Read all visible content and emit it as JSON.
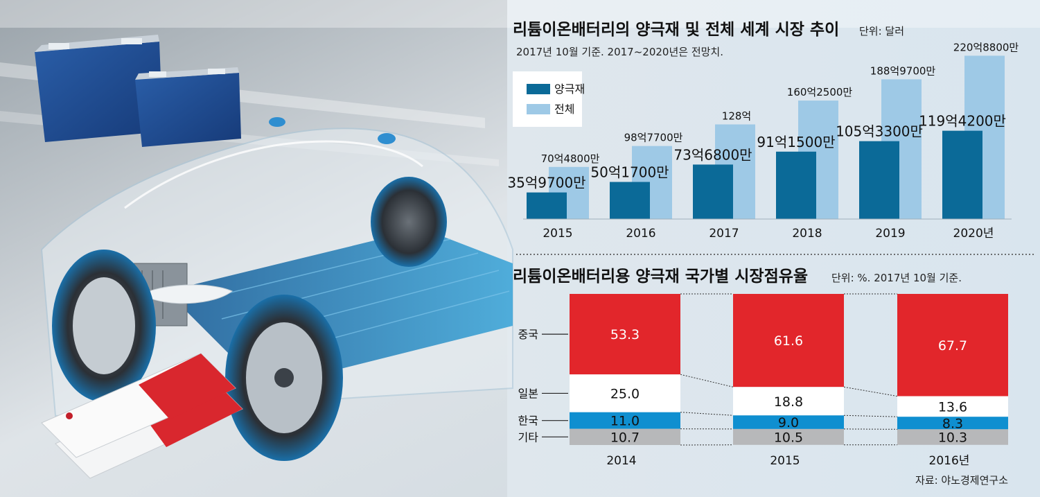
{
  "chart_data": [
    {
      "type": "bar",
      "title": "리튬이온배터리의 양극재 및 전체 세계 시장 추이",
      "unit": "단위: 달러",
      "subtitle": "2017년 10월 기준. 2017~2020년은 전망치.",
      "categories": [
        "2015",
        "2016",
        "2017",
        "2018",
        "2019",
        "2020년"
      ],
      "series": [
        {
          "name": "양극재",
          "color": "#0b6a98",
          "values": [
            35.97,
            50.17,
            73.68,
            91.15,
            105.33,
            119.42
          ],
          "labels": [
            "35억9700만",
            "50억1700만",
            "73억6800만",
            "91억1500만",
            "105억3300만",
            "119억4200만"
          ]
        },
        {
          "name": "전체",
          "color": "#9ec9e6",
          "values": [
            70.48,
            98.77,
            128,
            160.25,
            188.97,
            220.88
          ],
          "labels": [
            "70억4800만",
            "98억7700만",
            "128억",
            "160억2500만",
            "188억9700만",
            "220억8800만"
          ]
        }
      ],
      "value_unit": "억 달러",
      "legend": "top-left",
      "ylim": [
        0,
        240
      ]
    },
    {
      "type": "bar",
      "stacked": true,
      "percent": true,
      "title": "리튬이온배터리용 양극재 국가별 시장점유율",
      "unit": "단위: %. 2017년 10월 기준.",
      "categories": [
        "2014",
        "2015",
        "2016년"
      ],
      "series": [
        {
          "name": "중국",
          "color": "#e2262b",
          "values": [
            53.3,
            61.6,
            67.7
          ],
          "labels": [
            "53.3",
            "61.6",
            "67.7"
          ]
        },
        {
          "name": "일본",
          "color": "#ffffff",
          "values": [
            25.0,
            18.8,
            13.6
          ],
          "labels": [
            "25.0",
            "18.8",
            "13.6"
          ]
        },
        {
          "name": "한국",
          "color": "#0f8fd0",
          "values": [
            11.0,
            9.0,
            8.3
          ],
          "labels": [
            "11.0",
            "9.0",
            "8.3"
          ]
        },
        {
          "name": "기타",
          "color": "#b7b8ba",
          "values": [
            10.7,
            10.5,
            10.3
          ],
          "labels": [
            "10.7",
            "10.5",
            "10.3"
          ]
        }
      ],
      "source": "자료: 야노경제연구소"
    }
  ]
}
